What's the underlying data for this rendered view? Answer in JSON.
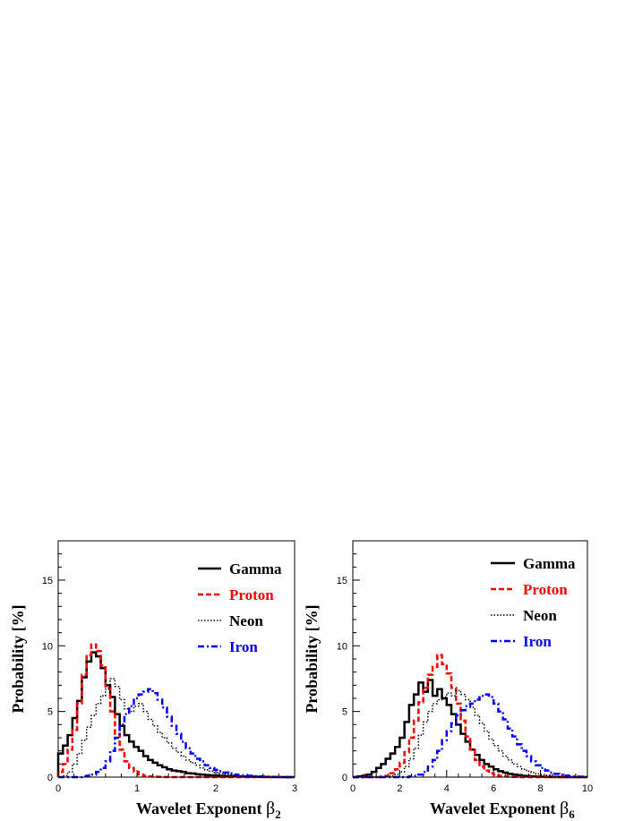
{
  "chart_data": [
    {
      "type": "line",
      "xlabel": "Wavelet Exponent",
      "xlabel_symbol": "β",
      "xlabel_sub": "2",
      "ylabel": "Probability [%]",
      "xlim": [
        0,
        3
      ],
      "ylim": [
        0,
        18
      ],
      "xticks": [
        0,
        1,
        2,
        3
      ],
      "yticks": [
        0,
        5,
        10,
        15
      ],
      "xmajor_step": 1,
      "xminor_step": 0.2,
      "ymajor_step": 5,
      "yminor_step": 1,
      "bin_start": 0,
      "bin_width": 0.06,
      "legend_position": "top-right",
      "series": [
        {
          "name": "Gamma",
          "color": "#000000",
          "style": "solid",
          "values": [
            1.8,
            2.4,
            3.2,
            4.5,
            5.8,
            7.6,
            8.8,
            9.5,
            9.2,
            8.3,
            7.0,
            6.1,
            4.8,
            3.9,
            3.2,
            2.7,
            2.3,
            2.0,
            1.6,
            1.3,
            1.1,
            0.9,
            0.75,
            0.6,
            0.5,
            0.45,
            0.4,
            0.3,
            0.28,
            0.22,
            0.2,
            0.16,
            0.14,
            0.12,
            0.1,
            0.08,
            0.07,
            0.06,
            0.05,
            0.04,
            0.03,
            0.03,
            0.02,
            0.02,
            0.01,
            0.01,
            0.01,
            0,
            0,
            0
          ]
        },
        {
          "name": "Proton",
          "color": "#ff0000",
          "style": "dashed",
          "values": [
            0.4,
            1.0,
            2.1,
            3.6,
            5.6,
            7.8,
            9.3,
            10.1,
            9.6,
            8.5,
            6.8,
            5.0,
            3.3,
            2.1,
            1.2,
            0.7,
            0.4,
            0.2,
            0.1,
            0.05,
            0.03,
            0.02,
            0.01,
            0,
            0,
            0,
            0,
            0,
            0,
            0,
            0,
            0,
            0,
            0,
            0,
            0,
            0,
            0,
            0,
            0,
            0,
            0,
            0,
            0,
            0,
            0,
            0,
            0,
            0,
            0
          ]
        },
        {
          "name": "Neon",
          "color": "#000000",
          "style": "dotted",
          "values": [
            0,
            0.1,
            0.4,
            1.0,
            1.8,
            2.8,
            3.8,
            4.7,
            5.6,
            6.2,
            6.7,
            7.5,
            6.9,
            5.9,
            5.2,
            5.0,
            5.4,
            5.6,
            5.0,
            4.4,
            3.9,
            3.4,
            3.0,
            2.6,
            2.2,
            1.9,
            1.6,
            1.3,
            1.1,
            0.9,
            0.7,
            0.55,
            0.45,
            0.35,
            0.28,
            0.22,
            0.17,
            0.13,
            0.1,
            0.08,
            0.06,
            0.04,
            0.03,
            0.02,
            0.01,
            0.01,
            0,
            0,
            0,
            0
          ]
        },
        {
          "name": "Iron",
          "color": "#0000ff",
          "style": "dashdot",
          "values": [
            0,
            0,
            0,
            0,
            0,
            0.05,
            0.1,
            0.2,
            0.4,
            0.7,
            1.2,
            2.0,
            3.0,
            4.0,
            4.8,
            5.4,
            6.0,
            6.3,
            6.5,
            6.7,
            6.4,
            5.9,
            5.3,
            4.6,
            3.9,
            3.3,
            2.7,
            2.2,
            1.8,
            1.4,
            1.2,
            0.9,
            0.7,
            0.55,
            0.45,
            0.35,
            0.28,
            0.2,
            0.15,
            0.12,
            0.1,
            0.07,
            0.05,
            0.04,
            0.03,
            0.02,
            0.01,
            0.01,
            0,
            0
          ]
        }
      ]
    },
    {
      "type": "line",
      "xlabel": "Wavelet Exponent",
      "xlabel_symbol": "β",
      "xlabel_sub": "6",
      "ylabel": "Probability [%]",
      "xlim": [
        0,
        10
      ],
      "ylim": [
        0,
        18
      ],
      "xticks": [
        0,
        2,
        4,
        6,
        8,
        10
      ],
      "yticks": [
        0,
        5,
        10,
        15
      ],
      "xmajor_step": 2,
      "xminor_step": 0.5,
      "ymajor_step": 5,
      "yminor_step": 1,
      "bin_start": 0,
      "bin_width": 0.2,
      "legend_position": "top-right",
      "series": [
        {
          "name": "Gamma",
          "color": "#000000",
          "style": "solid",
          "values": [
            0,
            0.05,
            0.1,
            0.2,
            0.4,
            0.7,
            1.0,
            1.4,
            1.8,
            2.3,
            3.0,
            4.2,
            5.5,
            6.3,
            7.2,
            6.5,
            7.4,
            6.2,
            6.7,
            6.0,
            5.5,
            4.8,
            4.0,
            3.3,
            2.7,
            2.1,
            1.7,
            1.3,
            1.0,
            0.8,
            0.6,
            0.45,
            0.35,
            0.25,
            0.2,
            0.15,
            0.1,
            0.08,
            0.06,
            0.04,
            0.03,
            0.02,
            0.01,
            0.01,
            0,
            0,
            0,
            0,
            0,
            0
          ]
        },
        {
          "name": "Proton",
          "color": "#ff0000",
          "style": "dashed",
          "values": [
            0,
            0,
            0,
            0,
            0,
            0,
            0.05,
            0.1,
            0.3,
            0.6,
            1.1,
            1.9,
            3.0,
            4.3,
            5.7,
            6.8,
            7.8,
            8.4,
            9.3,
            8.6,
            7.9,
            6.8,
            5.6,
            4.3,
            3.1,
            2.1,
            1.3,
            0.8,
            0.5,
            0.3,
            0.2,
            0.1,
            0.05,
            0.03,
            0.02,
            0.01,
            0,
            0,
            0,
            0,
            0,
            0,
            0,
            0,
            0,
            0,
            0,
            0,
            0,
            0
          ]
        },
        {
          "name": "Neon",
          "color": "#000000",
          "style": "dotted",
          "values": [
            0,
            0,
            0,
            0,
            0,
            0,
            0,
            0.05,
            0.1,
            0.2,
            0.4,
            0.8,
            1.4,
            2.2,
            3.2,
            4.2,
            5.0,
            5.6,
            5.9,
            6.1,
            6.4,
            6.2,
            6.6,
            6.3,
            5.9,
            5.3,
            4.7,
            4.1,
            3.5,
            2.9,
            2.4,
            2.0,
            1.6,
            1.3,
            1.0,
            0.8,
            0.6,
            0.45,
            0.35,
            0.25,
            0.2,
            0.15,
            0.1,
            0.07,
            0.05,
            0.03,
            0.02,
            0.01,
            0,
            0
          ]
        },
        {
          "name": "Iron",
          "color": "#0000ff",
          "style": "dashdot",
          "values": [
            0,
            0,
            0,
            0,
            0,
            0,
            0,
            0,
            0,
            0,
            0,
            0,
            0.05,
            0.1,
            0.2,
            0.4,
            0.8,
            1.3,
            2.0,
            2.8,
            3.5,
            4.1,
            4.7,
            5.1,
            5.4,
            5.6,
            5.9,
            6.2,
            6.3,
            6.1,
            5.6,
            5.0,
            4.4,
            3.7,
            3.1,
            2.5,
            2.0,
            1.6,
            1.2,
            0.9,
            0.7,
            0.5,
            0.35,
            0.25,
            0.18,
            0.12,
            0.08,
            0.05,
            0.03,
            0.01
          ]
        }
      ]
    }
  ]
}
